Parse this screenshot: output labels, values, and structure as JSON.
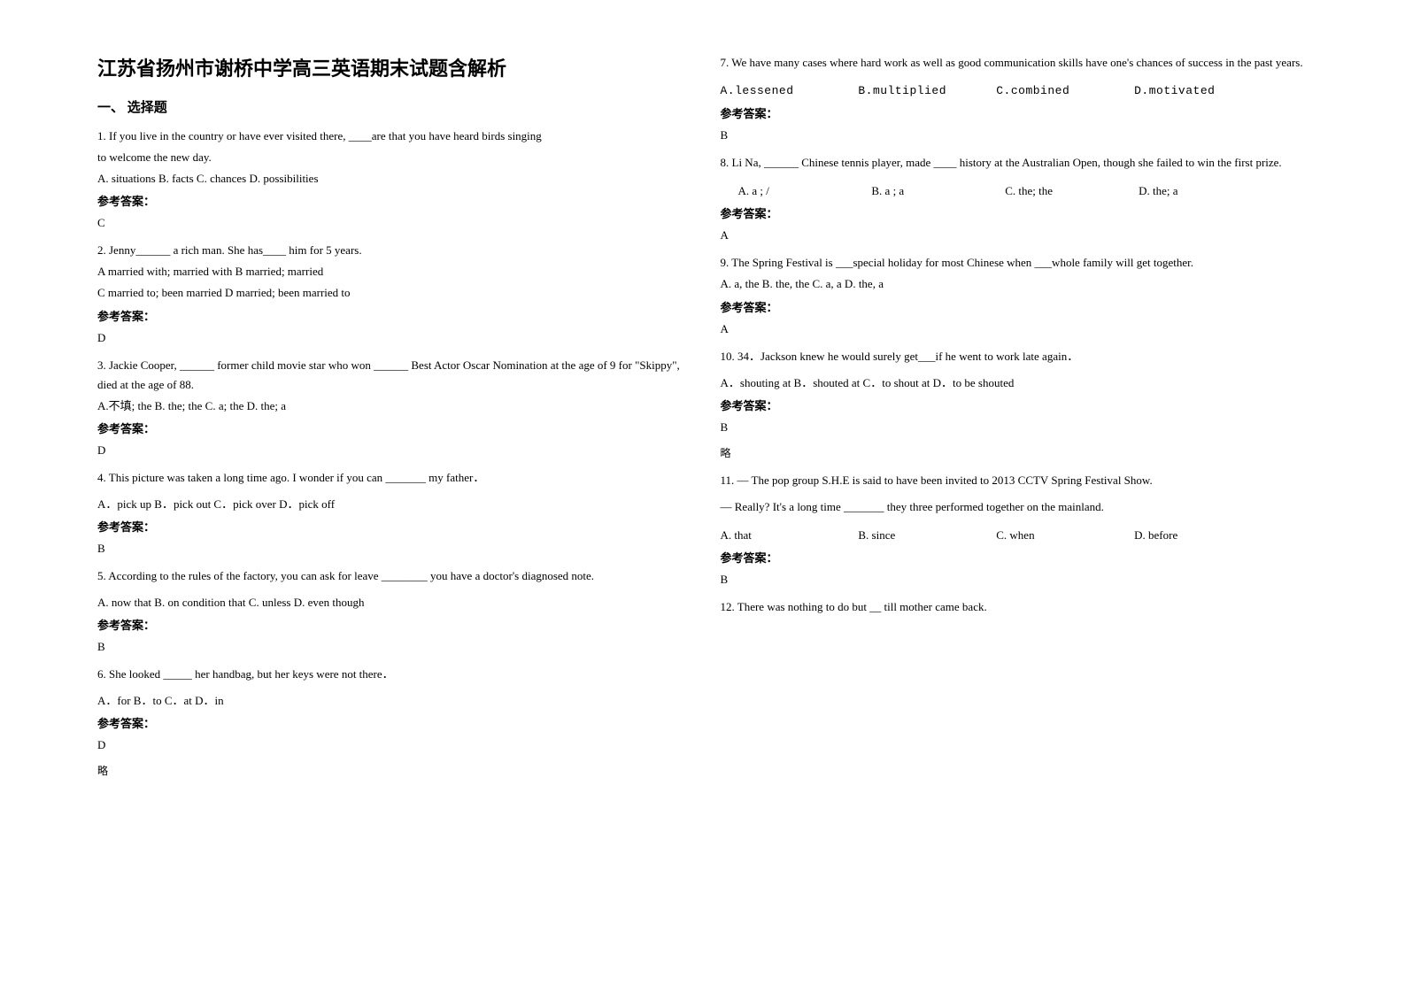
{
  "title": "江苏省扬州市谢桥中学高三英语期末试题含解析",
  "section_head": "一、 选择题",
  "answer_label": "参考答案：",
  "note_lve": "略",
  "left": {
    "q1": {
      "l1": "1. If you live in the country or have ever visited there, ____are that you have heard birds singing",
      "l2": " to welcome the new day.",
      "opts": " A. situations    B. facts      C. chances   D. possibilities",
      "ans": "C"
    },
    "q2": {
      "l1": "2. Jenny______ a rich man. She has____ him for 5 years.",
      "l2": "A married with; married with             B married; married",
      "l3": "C married to; been married               D married; been married to",
      "ans": "D"
    },
    "q3": {
      "l1": "3. Jackie Cooper, ______ former child movie star who won ______ Best Actor Oscar Nomination at the age of 9 for \"Skippy\", died at the age of 88.",
      "opts": "     A.不填; the     B. the;  the      C. a; the       D. the; a",
      "ans": "D"
    },
    "q4": {
      "l1": " 4. This picture was taken a long time ago. I wonder if you can _______ my father．",
      "opts": "    A．pick up         B．pick out    C．pick over     D．pick off",
      "ans": "B"
    },
    "q5": {
      "l1": "5. According to the rules of the factory, you can ask for leave ________ you have a doctor's diagnosed note.",
      "opts": "A. now that       B. on condition that     C. unless    D. even though",
      "ans": "B"
    },
    "q6": {
      "l1": "6. She looked _____ her handbag, but her keys were not there．",
      "opts": "         A．for           B．to               C．at                D．in",
      "ans": "D"
    }
  },
  "right": {
    "q7": {
      "l1": "7. We have many cases where hard work as well as good communication skills have      one's chances of success in the past years.",
      "oA": "A.lessened",
      "oB": "B.multiplied",
      "oC": "C.combined",
      "oD": "D.motivated",
      "ans": "B"
    },
    "q8": {
      "l1": "8. Li Na, ______ Chinese tennis player, made ____ history at the Australian Open, though she failed to win the first prize.",
      "oA": "A.  a ; /",
      "oB": "B. a ; a",
      "oC": "C. the; the",
      "oD": "D. the; a",
      "ans": "A"
    },
    "q9": {
      "l1": "9. The Spring Festival is ___special holiday for most Chinese when ___whole family will get together.",
      "opts": "     A. a, the                  B. the, the               C. a, a                    D. the, a",
      "ans": "A"
    },
    "q10": {
      "l1": "10. 34．Jackson knew he would surely get___if he went to work late again．",
      "opts": "       A．shouting at   B．shouted at   C．to shout at   D．to be shouted",
      "ans": "B"
    },
    "q11": {
      "l1": "11. — The pop group S.H.E is said to have been invited to 2013 CCTV Spring Festival Show.",
      "l2": "— Really? It's a long time _______ they three performed together on the mainland.",
      "oA": "A. that",
      "oB": "B. since",
      "oC": "C. when",
      "oD": "D. before",
      "ans": "B"
    },
    "q12": {
      "l1": "12. There was nothing to do but __ till mother came back."
    }
  }
}
